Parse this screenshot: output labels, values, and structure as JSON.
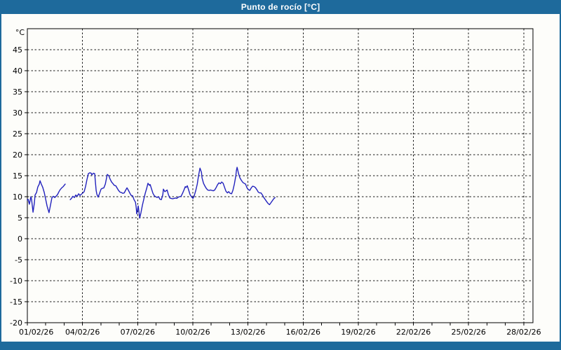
{
  "window": {
    "title": "Punto de rocío [°C]"
  },
  "colors": {
    "titlebar_bg": "#1e6a9c",
    "titlebar_text": "#ffffff",
    "window_border": "#1e6a9c",
    "chart_bg": "#fdfdfa",
    "grid": "#1a1a1a",
    "axis": "#000000",
    "tick_label": "#000000",
    "line": "#2222bd"
  },
  "chart_data": {
    "type": "line",
    "title": "Punto de rocío [°C]",
    "y_unit_label": "°C",
    "grid": "dashed",
    "legend": "none",
    "xlim_days": [
      0,
      27.5
    ],
    "ylim": [
      -20,
      50
    ],
    "y_ticks": [
      -20,
      -15,
      -10,
      -5,
      0,
      5,
      10,
      15,
      20,
      25,
      30,
      35,
      40,
      45
    ],
    "x_major_tick_days": [
      0,
      3,
      6,
      9,
      12,
      15,
      18,
      21,
      24,
      27
    ],
    "x_tick_labels": [
      "01/02/26",
      "04/02/26",
      "07/02/26",
      "10/02/26",
      "13/02/26",
      "16/02/26",
      "19/02/26",
      "22/02/26",
      "25/02/26",
      "28/02/26"
    ],
    "x_minor_tick_days": [
      0,
      1,
      2,
      3,
      4,
      5,
      6,
      7,
      8,
      9,
      10,
      11,
      12,
      13,
      14,
      15,
      16,
      17,
      18,
      19,
      20,
      21,
      22,
      23,
      24,
      25,
      26,
      27
    ],
    "series": [
      {
        "name": "Punto de rocío",
        "color": "#2222bd",
        "segments": [
          [
            [
              0.0,
              9.2
            ],
            [
              0.04,
              9.4
            ],
            [
              0.11,
              8.2
            ],
            [
              0.19,
              10.0
            ],
            [
              0.23,
              9.4
            ],
            [
              0.31,
              6.3
            ],
            [
              0.38,
              8.5
            ],
            [
              0.42,
              10.4
            ],
            [
              0.5,
              11.0
            ],
            [
              0.57,
              12.3
            ],
            [
              0.65,
              13.0
            ],
            [
              0.69,
              13.8
            ],
            [
              0.76,
              13.0
            ],
            [
              0.84,
              12.2
            ],
            [
              0.92,
              11.0
            ],
            [
              0.99,
              9.5
            ],
            [
              1.07,
              7.8
            ],
            [
              1.15,
              6.6
            ],
            [
              1.18,
              6.2
            ],
            [
              1.26,
              8.0
            ],
            [
              1.34,
              9.8
            ],
            [
              1.41,
              10.1
            ],
            [
              1.49,
              9.8
            ],
            [
              1.56,
              10.1
            ],
            [
              1.64,
              10.5
            ],
            [
              1.72,
              11.2
            ],
            [
              1.79,
              11.7
            ],
            [
              1.87,
              12.1
            ],
            [
              1.95,
              12.4
            ],
            [
              2.02,
              12.8
            ],
            [
              2.06,
              13.0
            ]
          ],
          [
            [
              2.33,
              9.3
            ],
            [
              2.4,
              9.6
            ],
            [
              2.48,
              10.1
            ],
            [
              2.56,
              9.8
            ],
            [
              2.63,
              10.4
            ],
            [
              2.71,
              10.1
            ],
            [
              2.79,
              10.7
            ],
            [
              2.86,
              10.3
            ],
            [
              2.94,
              10.6
            ],
            [
              3.02,
              10.9
            ],
            [
              3.09,
              11.2
            ],
            [
              3.17,
              12.5
            ],
            [
              3.24,
              14.0
            ],
            [
              3.32,
              15.5
            ],
            [
              3.4,
              15.7
            ],
            [
              3.47,
              15.6
            ],
            [
              3.51,
              15.2
            ],
            [
              3.59,
              15.6
            ],
            [
              3.66,
              15.5
            ],
            [
              3.74,
              11.5
            ],
            [
              3.78,
              10.6
            ],
            [
              3.85,
              9.9
            ],
            [
              3.93,
              10.8
            ],
            [
              4.01,
              11.8
            ],
            [
              4.08,
              12.0
            ],
            [
              4.16,
              12.1
            ],
            [
              4.24,
              13.0
            ],
            [
              4.31,
              14.5
            ],
            [
              4.35,
              15.3
            ],
            [
              4.43,
              15.0
            ],
            [
              4.5,
              14.2
            ],
            [
              4.58,
              13.5
            ],
            [
              4.66,
              13.1
            ],
            [
              4.73,
              12.7
            ],
            [
              4.81,
              12.6
            ],
            [
              4.89,
              12.0
            ],
            [
              4.96,
              11.5
            ],
            [
              5.04,
              11.1
            ],
            [
              5.11,
              11.0
            ],
            [
              5.19,
              10.8
            ],
            [
              5.27,
              10.9
            ],
            [
              5.34,
              11.5
            ],
            [
              5.42,
              12.1
            ],
            [
              5.5,
              11.5
            ],
            [
              5.57,
              10.9
            ],
            [
              5.65,
              10.3
            ],
            [
              5.73,
              10.2
            ],
            [
              5.8,
              9.3
            ],
            [
              5.88,
              8.7
            ],
            [
              5.92,
              7.5
            ],
            [
              5.95,
              5.9
            ],
            [
              6.03,
              7.8
            ],
            [
              6.11,
              4.9
            ],
            [
              6.18,
              6.2
            ],
            [
              6.26,
              8.0
            ],
            [
              6.34,
              9.5
            ],
            [
              6.41,
              10.8
            ],
            [
              6.49,
              12.0
            ],
            [
              6.56,
              13.2
            ],
            [
              6.64,
              12.7
            ],
            [
              6.68,
              12.9
            ],
            [
              6.76,
              11.8
            ],
            [
              6.83,
              10.8
            ],
            [
              6.91,
              10.2
            ],
            [
              6.98,
              10.0
            ],
            [
              7.06,
              9.8
            ],
            [
              7.14,
              10.0
            ],
            [
              7.21,
              9.4
            ],
            [
              7.29,
              9.3
            ],
            [
              7.37,
              10.5
            ],
            [
              7.4,
              11.8
            ],
            [
              7.48,
              11.2
            ],
            [
              7.6,
              11.6
            ],
            [
              7.67,
              10.5
            ],
            [
              7.75,
              9.7
            ],
            [
              7.82,
              9.6
            ],
            [
              7.9,
              9.5
            ],
            [
              7.98,
              9.6
            ],
            [
              8.05,
              9.7
            ],
            [
              8.13,
              9.6
            ],
            [
              8.21,
              9.9
            ],
            [
              8.28,
              10.0
            ],
            [
              8.36,
              10.1
            ],
            [
              8.44,
              10.8
            ],
            [
              8.51,
              11.5
            ],
            [
              8.59,
              12.4
            ],
            [
              8.63,
              12.2
            ],
            [
              8.7,
              12.6
            ],
            [
              8.78,
              11.5
            ],
            [
              8.85,
              10.5
            ],
            [
              8.93,
              10.0
            ],
            [
              9.01,
              9.6
            ],
            [
              9.08,
              10.3
            ],
            [
              9.16,
              11.5
            ],
            [
              9.24,
              13.0
            ],
            [
              9.31,
              15.0
            ],
            [
              9.39,
              16.8
            ],
            [
              9.47,
              15.8
            ],
            [
              9.5,
              14.5
            ],
            [
              9.58,
              13.2
            ],
            [
              9.66,
              12.5
            ],
            [
              9.73,
              12.0
            ],
            [
              9.81,
              11.6
            ],
            [
              9.89,
              11.5
            ],
            [
              9.96,
              11.6
            ],
            [
              10.04,
              11.5
            ],
            [
              10.11,
              11.4
            ],
            [
              10.19,
              11.6
            ],
            [
              10.27,
              12.2
            ],
            [
              10.34,
              12.8
            ],
            [
              10.42,
              13.3
            ],
            [
              10.5,
              13.1
            ],
            [
              10.57,
              13.5
            ],
            [
              10.65,
              13.2
            ],
            [
              10.73,
              12.2
            ],
            [
              10.8,
              11.3
            ],
            [
              10.88,
              10.9
            ],
            [
              10.95,
              11.2
            ],
            [
              11.03,
              10.8
            ],
            [
              11.11,
              10.7
            ],
            [
              11.18,
              11.5
            ],
            [
              11.26,
              13.0
            ],
            [
              11.34,
              15.0
            ],
            [
              11.37,
              16.2
            ],
            [
              11.41,
              17.0
            ],
            [
              11.49,
              15.5
            ],
            [
              11.56,
              14.5
            ],
            [
              11.64,
              13.9
            ],
            [
              11.72,
              13.4
            ],
            [
              11.79,
              13.2
            ],
            [
              11.87,
              13.0
            ],
            [
              11.95,
              12.1
            ],
            [
              12.02,
              11.7
            ],
            [
              12.1,
              11.5
            ],
            [
              12.18,
              12.1
            ],
            [
              12.25,
              12.5
            ],
            [
              12.33,
              12.4
            ],
            [
              12.4,
              12.2
            ],
            [
              12.48,
              11.7
            ],
            [
              12.56,
              11.1
            ],
            [
              12.63,
              10.9
            ],
            [
              12.71,
              10.9
            ],
            [
              12.79,
              10.4
            ],
            [
              12.86,
              9.8
            ],
            [
              12.94,
              9.3
            ],
            [
              13.02,
              8.8
            ],
            [
              13.09,
              8.4
            ],
            [
              13.17,
              8.1
            ],
            [
              13.24,
              8.5
            ],
            [
              13.32,
              9.0
            ],
            [
              13.4,
              9.5
            ],
            [
              13.47,
              9.8
            ]
          ]
        ]
      }
    ]
  }
}
